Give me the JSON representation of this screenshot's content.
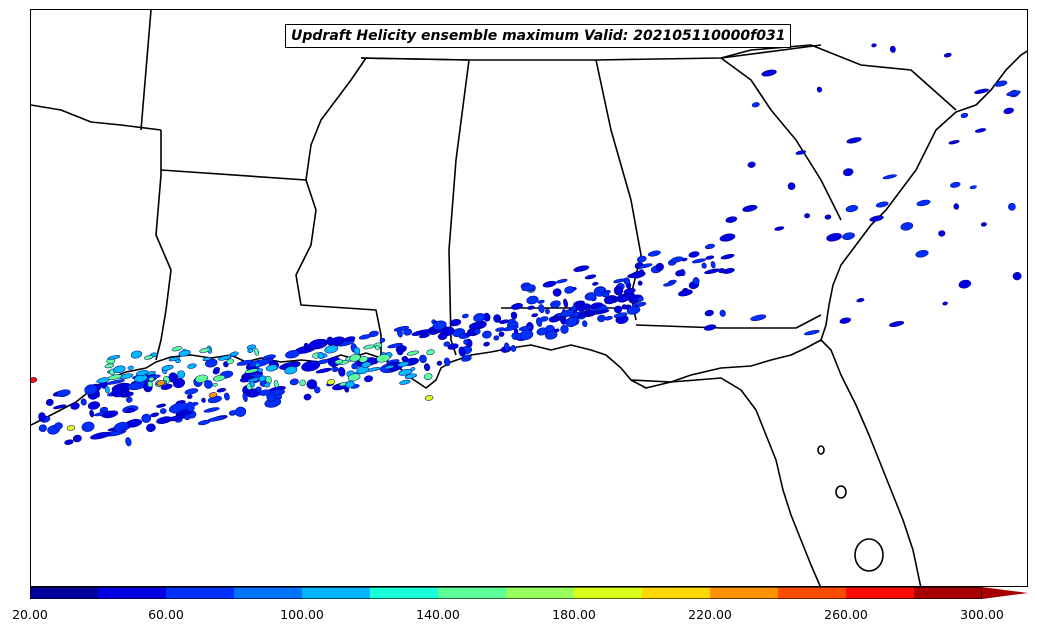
{
  "title": "Updraft Helicity ensemble maximum Valid: 202105110000f031",
  "colorbar": {
    "colors": [
      "#00009c",
      "#0000e0",
      "#0030ff",
      "#0074ff",
      "#00b6ff",
      "#18ffda",
      "#5dff99",
      "#99ff5d",
      "#daff18",
      "#ffd800",
      "#ff9200",
      "#ff4c00",
      "#ff0a00",
      "#a80000"
    ],
    "tick_labels": [
      "20.00",
      "60.00",
      "100.00",
      "140.00",
      "180.00",
      "220.00",
      "260.00",
      "300.00"
    ],
    "min": 20,
    "max": 300,
    "step": 20,
    "extend": "max"
  }
}
